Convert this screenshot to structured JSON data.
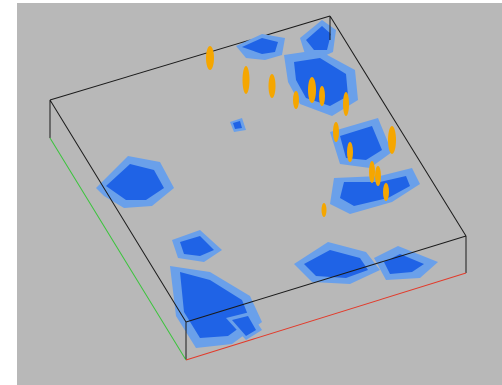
{
  "viewer": {
    "background_color": "#b8b8b8",
    "edge_color": "#1a1a1a",
    "axis_colors": {
      "x": "#e23a2a",
      "y": "#39c43a"
    },
    "isosurface_colors": {
      "inner": "#1f63e6",
      "outer": "#6aa0ea"
    },
    "marker_color": "#f5a600"
  }
}
